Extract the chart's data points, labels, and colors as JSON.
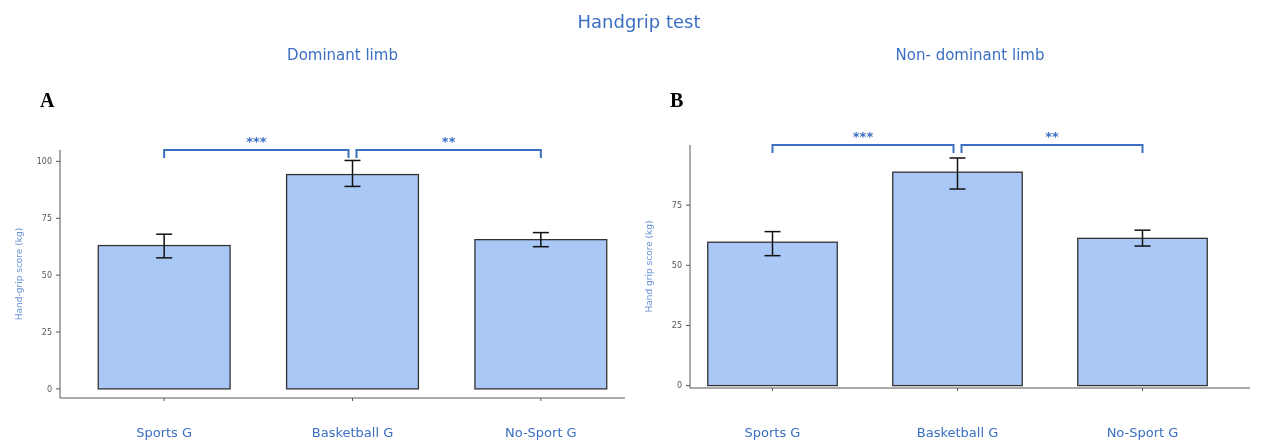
{
  "chart_data": [
    {
      "type": "bar",
      "title": "Handgrip test",
      "subtitle": "Dominant limb",
      "ylabel": "Hand-grip score (kg)",
      "categories": [
        "Sports G",
        "Basketball G",
        "No-Sport G"
      ],
      "values": [
        63,
        94.2,
        65.6
      ],
      "errors": [
        [
          57.6,
          68
        ],
        [
          89,
          100.4
        ],
        [
          62.5,
          68.7
        ]
      ],
      "color": "#a9c8f5",
      "ylim": [
        -4,
        105
      ],
      "yticks": [
        0,
        25,
        50,
        75,
        100
      ],
      "annotations": [
        "A",
        "***",
        "**"
      ]
    },
    {
      "type": "bar",
      "subtitle": "Non- dominant limb",
      "ylabel": "Hand grip score (kg)",
      "categories": [
        "Sports G",
        "Basketball G",
        "No-Sport G"
      ],
      "values": [
        59.6,
        88.7,
        61.2
      ],
      "errors": [
        [
          54,
          64
        ],
        [
          81.7,
          94.6
        ],
        [
          58,
          64.6
        ]
      ],
      "color": "#a9c8f5",
      "ylim": [
        -1,
        100
      ],
      "yticks": [
        0,
        25,
        50,
        75
      ],
      "annotations": [
        "B",
        "***",
        "**"
      ]
    }
  ]
}
